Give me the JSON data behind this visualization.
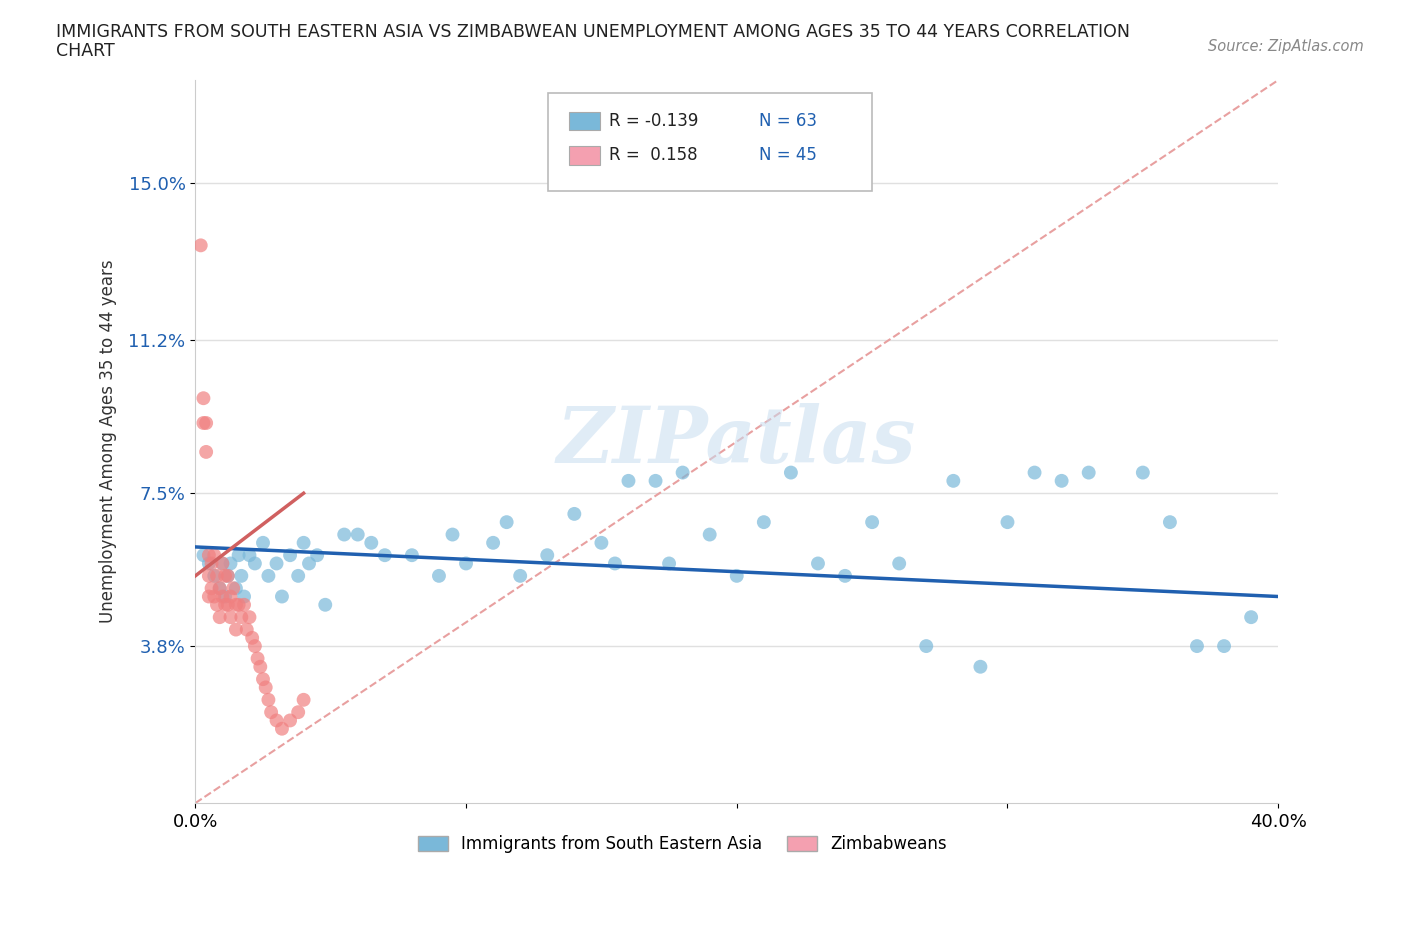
{
  "title_line1": "IMMIGRANTS FROM SOUTH EASTERN ASIA VS ZIMBABWEAN UNEMPLOYMENT AMONG AGES 35 TO 44 YEARS CORRELATION",
  "title_line2": "CHART",
  "source": "Source: ZipAtlas.com",
  "ylabel": "Unemployment Among Ages 35 to 44 years",
  "xlim": [
    0.0,
    0.4
  ],
  "ylim": [
    0.0,
    0.175
  ],
  "xticks": [
    0.0,
    0.1,
    0.2,
    0.3,
    0.4
  ],
  "xticklabels": [
    "0.0%",
    "",
    "",
    "",
    "40.0%"
  ],
  "yticks": [
    0.038,
    0.075,
    0.112,
    0.15
  ],
  "yticklabels": [
    "3.8%",
    "7.5%",
    "11.2%",
    "15.0%"
  ],
  "blue_scatter_color": "#7ab8d9",
  "pink_scatter_color": "#f08080",
  "blue_line_color": "#2060b0",
  "pink_line_color": "#d06060",
  "dash_line_color": "#e8a0a0",
  "legend_R_blue": "-0.139",
  "legend_N_blue": "63",
  "legend_R_pink": "0.158",
  "legend_N_pink": "45",
  "legend_label_blue": "Immigrants from South Eastern Asia",
  "legend_label_pink": "Zimbabweans",
  "blue_label_color": "#2060b0",
  "watermark_text": "ZIPatlas",
  "background_color": "#ffffff",
  "grid_color": "#e0e0e0",
  "blue_x": [
    0.003,
    0.005,
    0.007,
    0.009,
    0.01,
    0.011,
    0.012,
    0.013,
    0.015,
    0.016,
    0.017,
    0.018,
    0.02,
    0.022,
    0.025,
    0.027,
    0.03,
    0.032,
    0.035,
    0.038,
    0.04,
    0.042,
    0.045,
    0.048,
    0.055,
    0.06,
    0.065,
    0.07,
    0.08,
    0.09,
    0.095,
    0.1,
    0.11,
    0.115,
    0.12,
    0.13,
    0.14,
    0.15,
    0.155,
    0.16,
    0.17,
    0.18,
    0.19,
    0.2,
    0.21,
    0.22,
    0.23,
    0.24,
    0.25,
    0.26,
    0.28,
    0.3,
    0.31,
    0.32,
    0.33,
    0.35,
    0.36,
    0.37,
    0.38,
    0.39,
    0.175,
    0.27,
    0.29
  ],
  "blue_y": [
    0.06,
    0.058,
    0.055,
    0.052,
    0.058,
    0.05,
    0.055,
    0.058,
    0.052,
    0.06,
    0.055,
    0.05,
    0.06,
    0.058,
    0.063,
    0.055,
    0.058,
    0.05,
    0.06,
    0.055,
    0.063,
    0.058,
    0.06,
    0.048,
    0.065,
    0.065,
    0.063,
    0.06,
    0.06,
    0.055,
    0.065,
    0.058,
    0.063,
    0.068,
    0.055,
    0.06,
    0.07,
    0.063,
    0.058,
    0.078,
    0.078,
    0.08,
    0.065,
    0.055,
    0.068,
    0.08,
    0.058,
    0.055,
    0.068,
    0.058,
    0.078,
    0.068,
    0.08,
    0.078,
    0.08,
    0.08,
    0.068,
    0.038,
    0.038,
    0.045,
    0.058,
    0.038,
    0.033
  ],
  "pink_x": [
    0.002,
    0.003,
    0.003,
    0.004,
    0.004,
    0.005,
    0.005,
    0.005,
    0.006,
    0.006,
    0.007,
    0.007,
    0.008,
    0.008,
    0.009,
    0.009,
    0.01,
    0.01,
    0.011,
    0.011,
    0.012,
    0.012,
    0.013,
    0.013,
    0.014,
    0.015,
    0.015,
    0.016,
    0.017,
    0.018,
    0.019,
    0.02,
    0.021,
    0.022,
    0.023,
    0.024,
    0.025,
    0.026,
    0.027,
    0.028,
    0.03,
    0.032,
    0.035,
    0.038,
    0.04
  ],
  "pink_y": [
    0.135,
    0.098,
    0.092,
    0.092,
    0.085,
    0.06,
    0.055,
    0.05,
    0.058,
    0.052,
    0.06,
    0.05,
    0.055,
    0.048,
    0.052,
    0.045,
    0.058,
    0.05,
    0.055,
    0.048,
    0.055,
    0.048,
    0.05,
    0.045,
    0.052,
    0.048,
    0.042,
    0.048,
    0.045,
    0.048,
    0.042,
    0.045,
    0.04,
    0.038,
    0.035,
    0.033,
    0.03,
    0.028,
    0.025,
    0.022,
    0.02,
    0.018,
    0.02,
    0.022,
    0.025
  ],
  "blue_trend_x0": 0.0,
  "blue_trend_x1": 0.4,
  "blue_trend_y0": 0.062,
  "blue_trend_y1": 0.05,
  "pink_trend_x0": 0.0,
  "pink_trend_x1": 0.04,
  "pink_trend_y0": 0.055,
  "pink_trend_y1": 0.075
}
